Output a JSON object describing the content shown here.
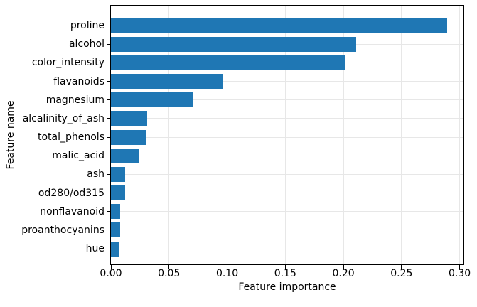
{
  "figure": {
    "background_color": "#ffffff",
    "spine_color": "#000000",
    "text_color": "#000000"
  },
  "chart_data": {
    "type": "bar",
    "orientation": "horizontal",
    "title": "",
    "xlabel": "Feature importance",
    "ylabel": "Feature name",
    "categories_top_to_bottom": [
      "proline",
      "alcohol",
      "color_intensity",
      "flavanoids",
      "magnesium",
      "alcalinity_of_ash",
      "total_phenols",
      "malic_acid",
      "ash",
      "od280/od315",
      "nonflavanoid",
      "proanthocyanins",
      "hue"
    ],
    "values": [
      0.289,
      0.211,
      0.201,
      0.096,
      0.071,
      0.031,
      0.03,
      0.024,
      0.012,
      0.012,
      0.008,
      0.008,
      0.007
    ],
    "xlim": [
      0,
      0.3033
    ],
    "x_ticks": [
      0.0,
      0.05,
      0.1,
      0.15,
      0.2,
      0.25,
      0.3
    ],
    "x_tick_labels": [
      "0.00",
      "0.05",
      "0.10",
      "0.15",
      "0.20",
      "0.25",
      "0.30"
    ],
    "bar_color": "#1f77b4",
    "grid": true,
    "grid_color": "#e7e7e7",
    "legend": null
  }
}
